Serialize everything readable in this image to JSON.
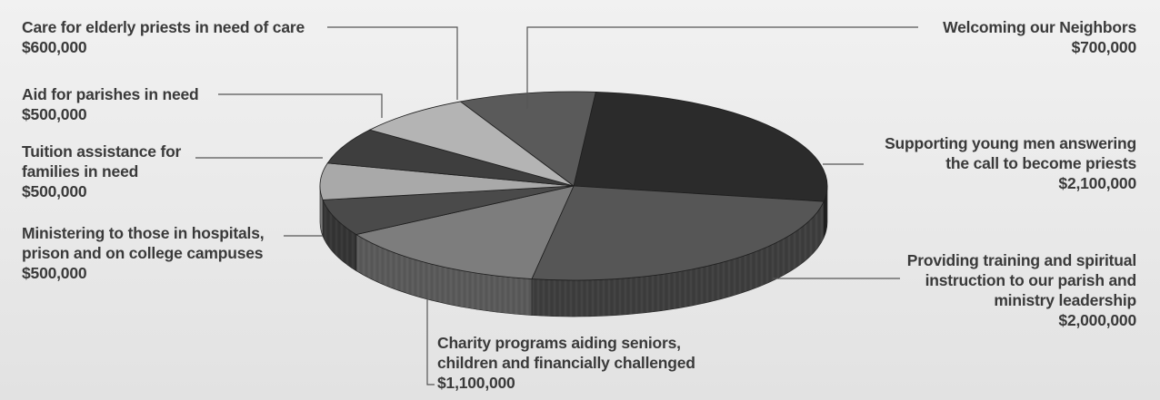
{
  "chart_data": {
    "type": "pie",
    "title": "",
    "style": "3d",
    "slices": [
      {
        "label_lines": [
          "Supporting young men answering",
          "the call to become priests"
        ],
        "value_text": "$2,100,000",
        "value": 2100000,
        "color": "#2b2b2b"
      },
      {
        "label_lines": [
          "Providing training and spiritual",
          "instruction to our parish and",
          "ministry leadership"
        ],
        "value_text": "$2,000,000",
        "value": 2000000,
        "color": "#565656"
      },
      {
        "label_lines": [
          "Charity programs aiding seniors,",
          "children and financially challenged"
        ],
        "value_text": "$1,100,000",
        "value": 1100000,
        "color": "#7d7d7d"
      },
      {
        "label_lines": [
          "Ministering to those in hospitals,",
          "prison and on college campuses"
        ],
        "value_text": "$500,000",
        "value": 500000,
        "color": "#4a4a4a"
      },
      {
        "label_lines": [
          "Tuition assistance for",
          "families in need"
        ],
        "value_text": "$500,000",
        "value": 500000,
        "color": "#a9a9a9"
      },
      {
        "label_lines": [
          "Aid for parishes in need"
        ],
        "value_text": "$500,000",
        "value": 500000,
        "color": "#3e3e3e"
      },
      {
        "label_lines": [
          "Care for elderly priests in need of care"
        ],
        "value_text": "$600,000",
        "value": 600000,
        "color": "#b4b4b4"
      },
      {
        "label_lines": [
          "Welcoming our Neighbors"
        ],
        "value_text": "$700,000",
        "value": 700000,
        "color": "#5a5a5a"
      }
    ]
  }
}
